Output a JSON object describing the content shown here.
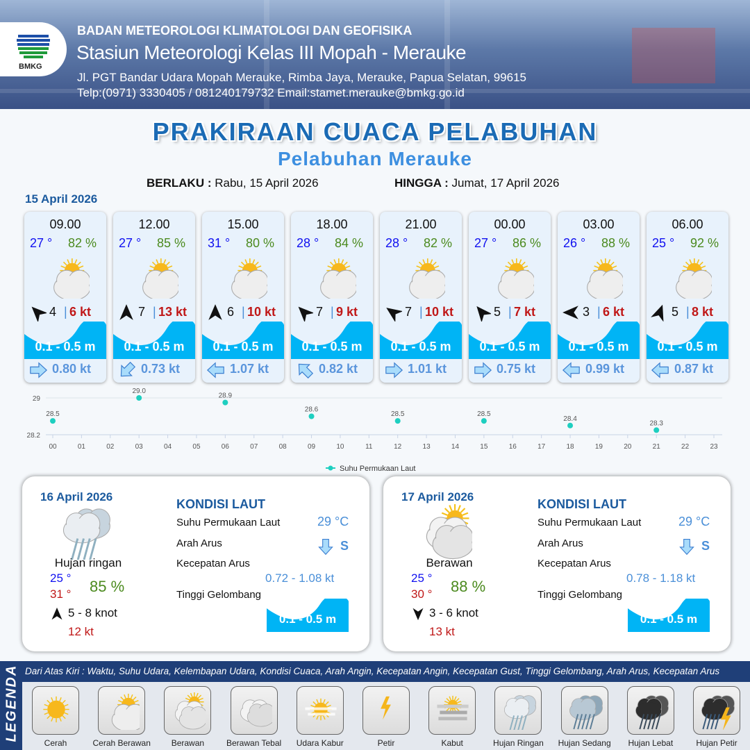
{
  "header": {
    "logo_text": "BMKG",
    "agency": "BADAN METEOROLOGI KLIMATOLOGI DAN GEOFISIKA",
    "station": "Stasiun Meteorologi Kelas III Mopah - Merauke",
    "address": "Jl. PGT Bandar Udara Mopah Merauke, Rimba Jaya, Merauke, Papua Selatan, 99615",
    "contact": "Telp:(0971) 3330405 / 081240179732  Email:stamet.merauke@bmkg.go.id"
  },
  "title": "PRAKIRAAN CUACA PELABUHAN",
  "subtitle": "Pelabuhan Merauke",
  "validity": {
    "from_label": "BERLAKU :",
    "from": "Rabu, 15 April 2026",
    "to_label": "HINGGA :",
    "to": "Jumat, 17 April 2026"
  },
  "day1": {
    "date": "15 April 2026",
    "cards": [
      {
        "time": "09.00",
        "temp": "27 °",
        "humidity": "82 %",
        "weather": "cerah-berawan",
        "wind_dir_deg": -45,
        "wind": "4",
        "gust": "6 kt",
        "wave": "0.1 - 0.5 m",
        "current_dir": "east",
        "current": "0.80 kt"
      },
      {
        "time": "12.00",
        "temp": "27 °",
        "humidity": "85 %",
        "weather": "cerah-berawan",
        "wind_dir_deg": 0,
        "wind": "7",
        "gust": "13 kt",
        "wave": "0.1 - 0.5 m",
        "current_dir": "southwest",
        "current": "0.73 kt"
      },
      {
        "time": "15.00",
        "temp": "31 °",
        "humidity": "80 %",
        "weather": "cerah-berawan",
        "wind_dir_deg": 0,
        "wind": "6",
        "gust": "10 kt",
        "wave": "0.1 - 0.5 m",
        "current_dir": "west",
        "current": "1.07 kt"
      },
      {
        "time": "18.00",
        "temp": "28 °",
        "humidity": "84 %",
        "weather": "cerah-berawan",
        "wind_dir_deg": -45,
        "wind": "7",
        "gust": "9 kt",
        "wave": "0.1 - 0.5 m",
        "current_dir": "northwest",
        "current": "0.82 kt"
      },
      {
        "time": "21.00",
        "temp": "28 °",
        "humidity": "82 %",
        "weather": "cerah-berawan",
        "wind_dir_deg": -55,
        "wind": "7",
        "gust": "10 kt",
        "wave": "0.1 - 0.5 m",
        "current_dir": "east",
        "current": "1.01 kt"
      },
      {
        "time": "00.00",
        "temp": "27 °",
        "humidity": "86 %",
        "weather": "cerah-berawan",
        "wind_dir_deg": -40,
        "wind": "5",
        "gust": "7 kt",
        "wave": "0.1 - 0.5 m",
        "current_dir": "east",
        "current": "0.75 kt"
      },
      {
        "time": "03.00",
        "temp": "26 °",
        "humidity": "88 %",
        "weather": "cerah-berawan",
        "wind_dir_deg": -90,
        "wind": "3",
        "gust": "6 kt",
        "wave": "0.1 - 0.5 m",
        "current_dir": "west",
        "current": "0.99 kt"
      },
      {
        "time": "06.00",
        "temp": "25 °",
        "humidity": "92 %",
        "weather": "cerah-berawan",
        "wind_dir_deg": 20,
        "wind": "5",
        "gust": "8 kt",
        "wave": "0.1 - 0.5 m",
        "current_dir": "west",
        "current": "0.87 kt"
      }
    ]
  },
  "chart_data": {
    "type": "scatter",
    "x": [
      "00",
      "03",
      "06",
      "09",
      "12",
      "15",
      "18",
      "21"
    ],
    "values": [
      28.5,
      29.0,
      28.9,
      28.6,
      28.5,
      28.5,
      28.4,
      28.3
    ],
    "x_ticks": [
      "00",
      "01",
      "02",
      "03",
      "04",
      "05",
      "06",
      "07",
      "08",
      "09",
      "10",
      "11",
      "12",
      "13",
      "14",
      "15",
      "16",
      "17",
      "18",
      "19",
      "20",
      "21",
      "22",
      "23"
    ],
    "y_ticks": [
      "29",
      "28.2"
    ],
    "ylim": [
      28.2,
      29
    ],
    "series": [
      {
        "name": "Suhu Permukaan Laut",
        "color": "#1ecfc0"
      }
    ],
    "legend": "bottom",
    "grid": true
  },
  "days": [
    {
      "date": "16 April 2026",
      "condition": "Hujan ringan",
      "weather": "hujan-ringan",
      "tmin": "25 °",
      "tmax": "31 °",
      "humidity": "85 %",
      "wind_dir_deg": 0,
      "wind": "5  - 8 knot",
      "gust": "12 kt",
      "sea": {
        "title": "KONDISI LAUT",
        "sst_label": "Suhu Permukaan Laut",
        "sst": "29 °C",
        "dir_label": "Arah Arus",
        "dir": "S",
        "speed_label": "Kecepatan Arus",
        "speed": "0.72 - 1.08 kt",
        "wave_label": "Tinggi Gelombang",
        "wave": "0.1 - 0.5 m"
      }
    },
    {
      "date": "17 April 2026",
      "condition": "Berawan",
      "weather": "berawan",
      "tmin": "25 °",
      "tmax": "30 °",
      "humidity": "88 %",
      "wind_dir_deg": 180,
      "wind": "3  - 6 knot",
      "gust": "13 kt",
      "sea": {
        "title": "KONDISI LAUT",
        "sst_label": "Suhu Permukaan Laut",
        "sst": "29 °C",
        "dir_label": "Arah Arus",
        "dir": "S",
        "speed_label": "Kecepatan Arus",
        "speed": "0.78 - 1.18 kt",
        "wave_label": "Tinggi Gelombang",
        "wave": "0.1 - 0.5 m"
      }
    }
  ],
  "legend": {
    "title": "LEGENDA",
    "description": "Dari Atas Kiri : Waktu, Suhu Udara, Kelembapan Udara, Kondisi Cuaca, Arah Angin, Kecepatan Angin, Kecepatan Gust, Tinggi Gelombang, Arah Arus, Kecepatan Arus",
    "items": [
      {
        "label": "Cerah",
        "icon": "cerah"
      },
      {
        "label": "Cerah Berawan",
        "icon": "cerah-berawan"
      },
      {
        "label": "Berawan",
        "icon": "berawan"
      },
      {
        "label": "Berawan Tebal",
        "icon": "berawan-tebal"
      },
      {
        "label": "Udara Kabur",
        "icon": "udara-kabur"
      },
      {
        "label": "Petir",
        "icon": "petir"
      },
      {
        "label": "Kabut",
        "icon": "kabut"
      },
      {
        "label": "Hujan Ringan",
        "icon": "hujan-ringan"
      },
      {
        "label": "Hujan Sedang",
        "icon": "hujan-sedang"
      },
      {
        "label": "Hujan Lebat",
        "icon": "hujan-lebat"
      },
      {
        "label": "Hujan Petir",
        "icon": "hujan-petir"
      }
    ]
  },
  "colors": {
    "brand": "#1b6bb5",
    "navy": "#1f3f78",
    "wave": "#00b4f5",
    "temp": "#1010f0",
    "humidity": "#4b8a1e",
    "gust": "#c01818",
    "current": "#5a95dc"
  }
}
